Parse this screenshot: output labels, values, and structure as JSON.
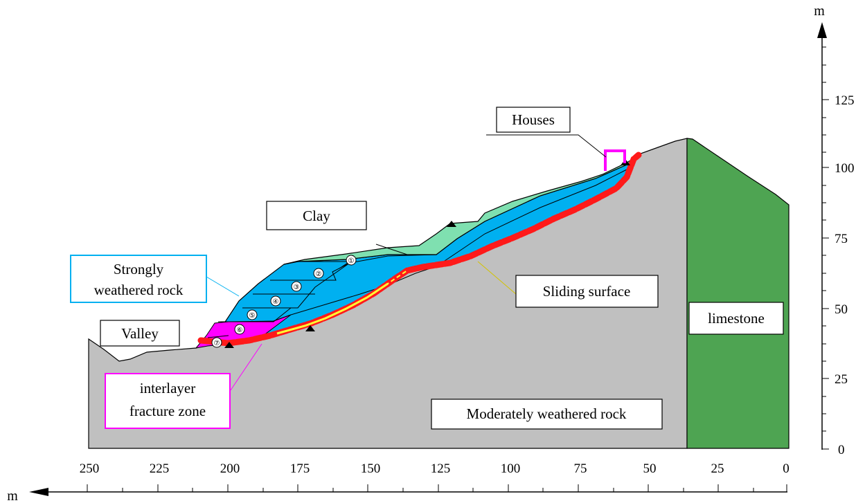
{
  "x_axis": {
    "unit": "m",
    "ticks": [
      "250",
      "225",
      "200",
      "175",
      "150",
      "125",
      "100",
      "75",
      "50",
      "25",
      "0"
    ]
  },
  "y_axis": {
    "unit": "m",
    "ticks": [
      "125",
      "100",
      "75",
      "50",
      "25",
      "0"
    ]
  },
  "labels": {
    "houses": "Houses",
    "clay": "Clay",
    "strongly_weathered_1": "Strongly",
    "strongly_weathered_2": "weathered rock",
    "sliding_surface": "Sliding surface",
    "limestone": "limestone",
    "valley": "Valley",
    "fracture_1": "interlayer",
    "fracture_2": "fracture zone",
    "moderately": "Moderately weathered rock"
  },
  "layer_numbers": [
    "①",
    "②",
    "③",
    "④",
    "⑤",
    "⑥",
    "⑦"
  ],
  "colors": {
    "rock_gray": "#c0c0c0",
    "limestone_green": "#4ea452",
    "clay_green": "#7fe0b0",
    "weathered_blue": "#00b0f0",
    "fracture_magenta": "#ff00ff",
    "sliding_red": "#ff1a1a",
    "sliding_yellow": "#ffff33",
    "cyan_box": "#00b0f0"
  }
}
